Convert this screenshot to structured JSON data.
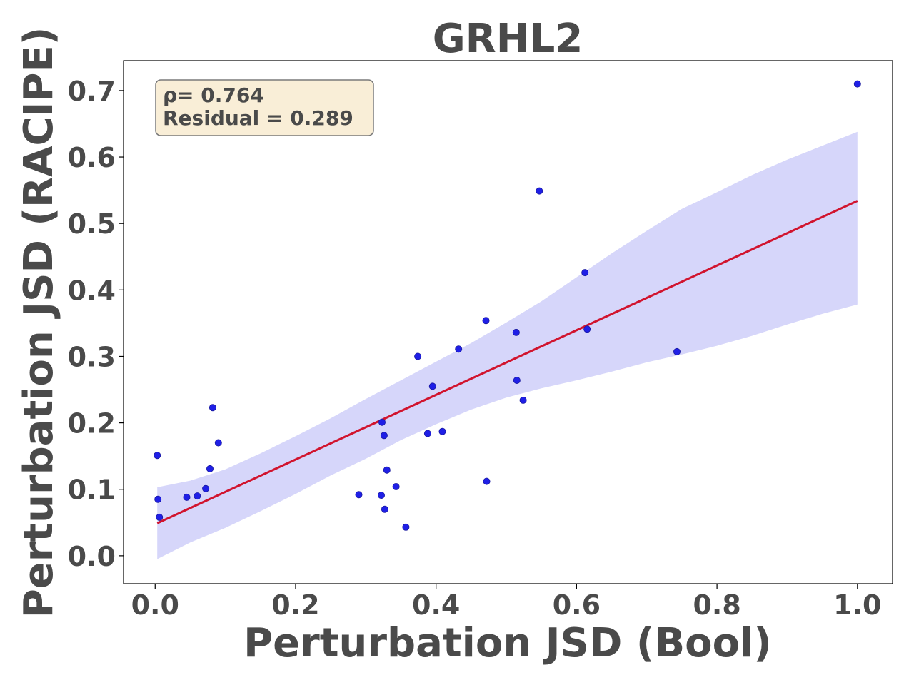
{
  "chart_data": {
    "type": "scatter",
    "title": "GRHL2",
    "xlabel": "Perturbation JSD (Bool)",
    "ylabel": "Perturbation JSD (RACIPE)",
    "xlim": [
      -0.045,
      1.05
    ],
    "ylim": [
      -0.042,
      0.745
    ],
    "xticks": [
      0.0,
      0.2,
      0.4,
      0.6,
      0.8,
      1.0
    ],
    "xtick_labels": [
      "0.0",
      "0.2",
      "0.4",
      "0.6",
      "0.8",
      "1.0"
    ],
    "yticks": [
      0.0,
      0.1,
      0.2,
      0.3,
      0.4,
      0.5,
      0.6,
      0.7
    ],
    "ytick_labels": [
      "0.0",
      "0.1",
      "0.2",
      "0.3",
      "0.4",
      "0.5",
      "0.6",
      "0.7"
    ],
    "grid": false,
    "annotation": {
      "line1": "ρ= 0.764",
      "line2": "Residual = 0.289"
    },
    "points": [
      {
        "x": 0.003,
        "y": 0.151
      },
      {
        "x": 0.004,
        "y": 0.085
      },
      {
        "x": 0.006,
        "y": 0.058
      },
      {
        "x": 0.045,
        "y": 0.088
      },
      {
        "x": 0.06,
        "y": 0.09
      },
      {
        "x": 0.072,
        "y": 0.101
      },
      {
        "x": 0.078,
        "y": 0.131
      },
      {
        "x": 0.082,
        "y": 0.223
      },
      {
        "x": 0.09,
        "y": 0.17
      },
      {
        "x": 0.29,
        "y": 0.092
      },
      {
        "x": 0.322,
        "y": 0.091
      },
      {
        "x": 0.323,
        "y": 0.201
      },
      {
        "x": 0.326,
        "y": 0.181
      },
      {
        "x": 0.327,
        "y": 0.07
      },
      {
        "x": 0.33,
        "y": 0.129
      },
      {
        "x": 0.343,
        "y": 0.104
      },
      {
        "x": 0.357,
        "y": 0.043
      },
      {
        "x": 0.374,
        "y": 0.3
      },
      {
        "x": 0.388,
        "y": 0.184
      },
      {
        "x": 0.395,
        "y": 0.255
      },
      {
        "x": 0.409,
        "y": 0.187
      },
      {
        "x": 0.432,
        "y": 0.311
      },
      {
        "x": 0.471,
        "y": 0.354
      },
      {
        "x": 0.472,
        "y": 0.112
      },
      {
        "x": 0.514,
        "y": 0.336
      },
      {
        "x": 0.515,
        "y": 0.264
      },
      {
        "x": 0.524,
        "y": 0.234
      },
      {
        "x": 0.547,
        "y": 0.549
      },
      {
        "x": 0.612,
        "y": 0.426
      },
      {
        "x": 0.615,
        "y": 0.341
      },
      {
        "x": 0.743,
        "y": 0.307
      },
      {
        "x": 1.0,
        "y": 0.71
      }
    ],
    "regression": {
      "x": [
        0.003,
        1.0
      ],
      "y": [
        0.049,
        0.534
      ]
    },
    "confidence_band": {
      "x": [
        0.003,
        0.05,
        0.1,
        0.15,
        0.2,
        0.25,
        0.3,
        0.35,
        0.4,
        0.45,
        0.5,
        0.55,
        0.6,
        0.65,
        0.7,
        0.75,
        0.8,
        0.85,
        0.9,
        0.95,
        1.0
      ],
      "upper": [
        0.103,
        0.113,
        0.13,
        0.154,
        0.18,
        0.207,
        0.236,
        0.264,
        0.292,
        0.32,
        0.351,
        0.383,
        0.419,
        0.455,
        0.489,
        0.522,
        0.547,
        0.573,
        0.596,
        0.617,
        0.638
      ],
      "lower": [
        -0.005,
        0.02,
        0.042,
        0.067,
        0.093,
        0.121,
        0.146,
        0.174,
        0.198,
        0.22,
        0.238,
        0.252,
        0.264,
        0.277,
        0.291,
        0.303,
        0.316,
        0.331,
        0.348,
        0.364,
        0.378
      ]
    },
    "colors": {
      "points": "#1f1fe6",
      "point_edge": "#1a1aa0",
      "regression_line": "#d1142e",
      "band": "#d6d6fa",
      "annotation_fill": "#f9eed7",
      "annotation_edge": "#7a7a7a",
      "text": "#4a4a4a"
    }
  }
}
